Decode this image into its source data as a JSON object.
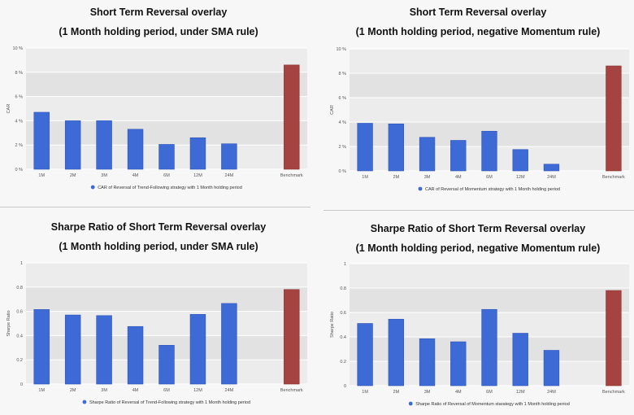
{
  "colors": {
    "series": "#3e6ad6",
    "benchmark": "#a4433f",
    "plot_bg_dark": "#e2e2e2",
    "plot_bg_light": "#ececec",
    "grid": "#ffffff",
    "text": "#555555"
  },
  "chart_data": [
    {
      "type": "bar",
      "title": "Short Term Reversal overlay",
      "subtitle": "(1 Month holding period, under SMA rule)",
      "categories": [
        "1M",
        "2M",
        "3M",
        "4M",
        "6M",
        "12M",
        "24M",
        "",
        "Benchmark"
      ],
      "series": [
        {
          "name": "CAR of Reversal of Trend-Following strategy with 1 Month holding period",
          "values": [
            4.7,
            4.0,
            4.0,
            3.3,
            2.05,
            2.6,
            2.1,
            null,
            8.6
          ]
        }
      ],
      "highlight": {
        "category": "Benchmark",
        "color": "#a4433f"
      },
      "ylabel": "CAR",
      "ylim": [
        0,
        10
      ],
      "yticks": [
        0,
        2,
        4,
        6,
        8,
        10
      ],
      "ytick_labels": [
        "0 %",
        "2 %",
        "4 %",
        "6 %",
        "8 %",
        "10 %"
      ],
      "grid": true,
      "legend": "bottom-center"
    },
    {
      "type": "bar",
      "title": "Short Term Reversal overlay",
      "subtitle": "(1 Month holding period, negative Momentum rule)",
      "categories": [
        "1M",
        "2M",
        "3M",
        "4M",
        "6M",
        "12M",
        "24M",
        "",
        "Benchmark"
      ],
      "series": [
        {
          "name": "CAR of Reversal of Momentum strategy with 1 Month holding period",
          "values": [
            3.9,
            3.85,
            2.75,
            2.5,
            3.25,
            1.75,
            0.55,
            null,
            8.6
          ]
        }
      ],
      "highlight": {
        "category": "Benchmark",
        "color": "#a4433f"
      },
      "ylabel": "CAR",
      "ylim": [
        0,
        10
      ],
      "yticks": [
        0,
        2,
        4,
        6,
        8,
        10
      ],
      "ytick_labels": [
        "0 %",
        "2 %",
        "4 %",
        "6 %",
        "8 %",
        "10 %"
      ],
      "grid": true,
      "legend": "bottom-center"
    },
    {
      "type": "bar",
      "title": "Sharpe Ratio of Short Term Reversal overlay",
      "subtitle": "(1 Month holding period, under SMA rule)",
      "categories": [
        "1M",
        "2M",
        "3M",
        "4M",
        "6M",
        "12M",
        "24M",
        "",
        "Benchmark"
      ],
      "series": [
        {
          "name": "Sharpe Ratio of Reversal of Trend-Following strategy with 1 Month holding period",
          "values": [
            0.615,
            0.57,
            0.565,
            0.475,
            0.32,
            0.575,
            0.665,
            null,
            0.78
          ]
        }
      ],
      "highlight": {
        "category": "Benchmark",
        "color": "#a4433f"
      },
      "ylabel": "Sharpe Ratio",
      "ylim": [
        0,
        1
      ],
      "yticks": [
        0,
        0.2,
        0.4,
        0.6,
        0.8,
        1
      ],
      "ytick_labels": [
        "0",
        "0.2",
        "0.4",
        "0.6",
        "0.8",
        "1"
      ],
      "grid": true,
      "legend": "bottom-center"
    },
    {
      "type": "bar",
      "title": "Sharpe Ratio of Short Term Reversal overlay",
      "subtitle": "(1 Month holding period, negative Momentum rule)",
      "categories": [
        "1M",
        "2M",
        "3M",
        "4M",
        "6M",
        "12M",
        "24M",
        "",
        "Benchmark"
      ],
      "series": [
        {
          "name": "Sharpe Ratio of Reversal of Momentum starategy with 1 Month holding period",
          "values": [
            0.51,
            0.545,
            0.385,
            0.36,
            0.625,
            0.43,
            0.29,
            null,
            0.78
          ]
        }
      ],
      "highlight": {
        "category": "Benchmark",
        "color": "#a4433f"
      },
      "ylabel": "Sharpe Ratio",
      "ylim": [
        0,
        1
      ],
      "yticks": [
        0,
        0.2,
        0.4,
        0.6,
        0.8,
        1
      ],
      "ytick_labels": [
        "0",
        "0.2",
        "0.4",
        "0.6",
        "0.8",
        "1"
      ],
      "grid": true,
      "legend": "bottom-center"
    }
  ]
}
